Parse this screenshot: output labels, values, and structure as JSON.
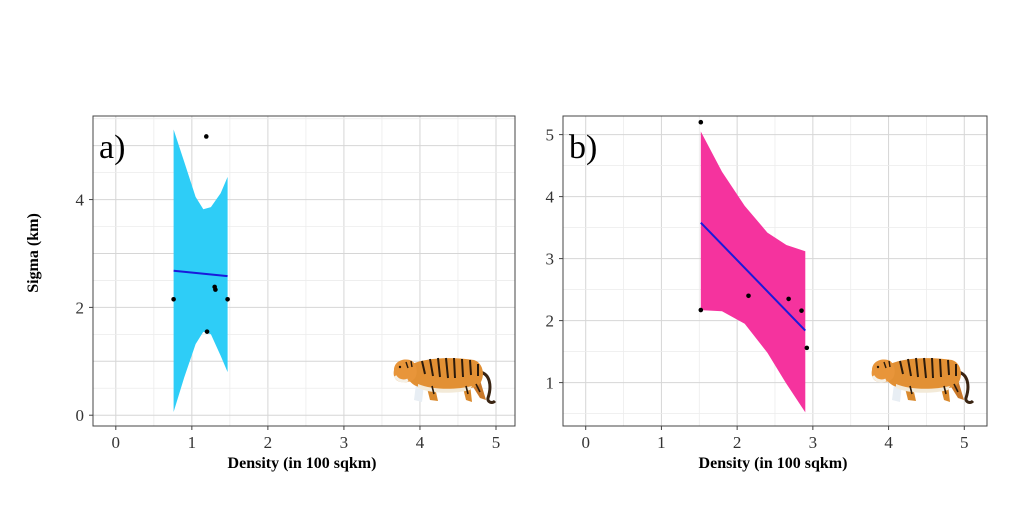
{
  "chart_data": [
    {
      "type": "scatter",
      "panel_label": "a)",
      "xlabel": "Density (in 100 sqkm)",
      "ylabel": "Sigma (km)",
      "xlim": [
        -0.3,
        5.25
      ],
      "ylim": [
        -0.2,
        5.55
      ],
      "xticks": [
        0,
        1,
        2,
        3,
        4,
        5
      ],
      "yticks": [
        0,
        2,
        4
      ],
      "grid": true,
      "points": [
        {
          "x": 0.76,
          "y": 2.15
        },
        {
          "x": 1.19,
          "y": 5.17
        },
        {
          "x": 1.2,
          "y": 1.55
        },
        {
          "x": 1.3,
          "y": 2.38
        },
        {
          "x": 1.31,
          "y": 2.33
        },
        {
          "x": 1.47,
          "y": 2.15
        }
      ],
      "fit": {
        "x": [
          0.76,
          1.47
        ],
        "y": [
          2.68,
          2.58
        ],
        "color": "#1a1adb"
      },
      "band": {
        "color": "#2ecdf7",
        "x": [
          0.76,
          0.9,
          1.05,
          1.15,
          1.25,
          1.38,
          1.47
        ],
        "upper": [
          5.3,
          4.7,
          4.05,
          3.82,
          3.86,
          4.12,
          4.42
        ],
        "lower": [
          0.06,
          0.7,
          1.32,
          1.55,
          1.5,
          1.1,
          0.8
        ]
      },
      "icon": "tiger-icon"
    },
    {
      "type": "scatter",
      "panel_label": "b)",
      "xlabel": "Density (in 100 sqkm)",
      "ylabel": "",
      "xlim": [
        -0.3,
        5.3
      ],
      "ylim": [
        0.3,
        5.3
      ],
      "xticks": [
        0,
        1,
        2,
        3,
        4,
        5
      ],
      "yticks": [
        1,
        2,
        3,
        4,
        5
      ],
      "grid": true,
      "points": [
        {
          "x": 1.52,
          "y": 5.2
        },
        {
          "x": 1.52,
          "y": 2.17
        },
        {
          "x": 2.15,
          "y": 2.4
        },
        {
          "x": 2.68,
          "y": 2.35
        },
        {
          "x": 2.85,
          "y": 2.16
        },
        {
          "x": 2.92,
          "y": 1.56
        }
      ],
      "fit": {
        "x": [
          1.52,
          2.9
        ],
        "y": [
          3.58,
          1.84
        ],
        "color": "#1a1adb"
      },
      "band": {
        "color": "#f5339e",
        "x": [
          1.52,
          1.8,
          2.1,
          2.4,
          2.65,
          2.9
        ],
        "upper": [
          5.05,
          4.4,
          3.85,
          3.42,
          3.22,
          3.12
        ],
        "lower": [
          2.17,
          2.15,
          1.95,
          1.48,
          0.98,
          0.52
        ]
      },
      "icon": "tiger-icon"
    }
  ]
}
